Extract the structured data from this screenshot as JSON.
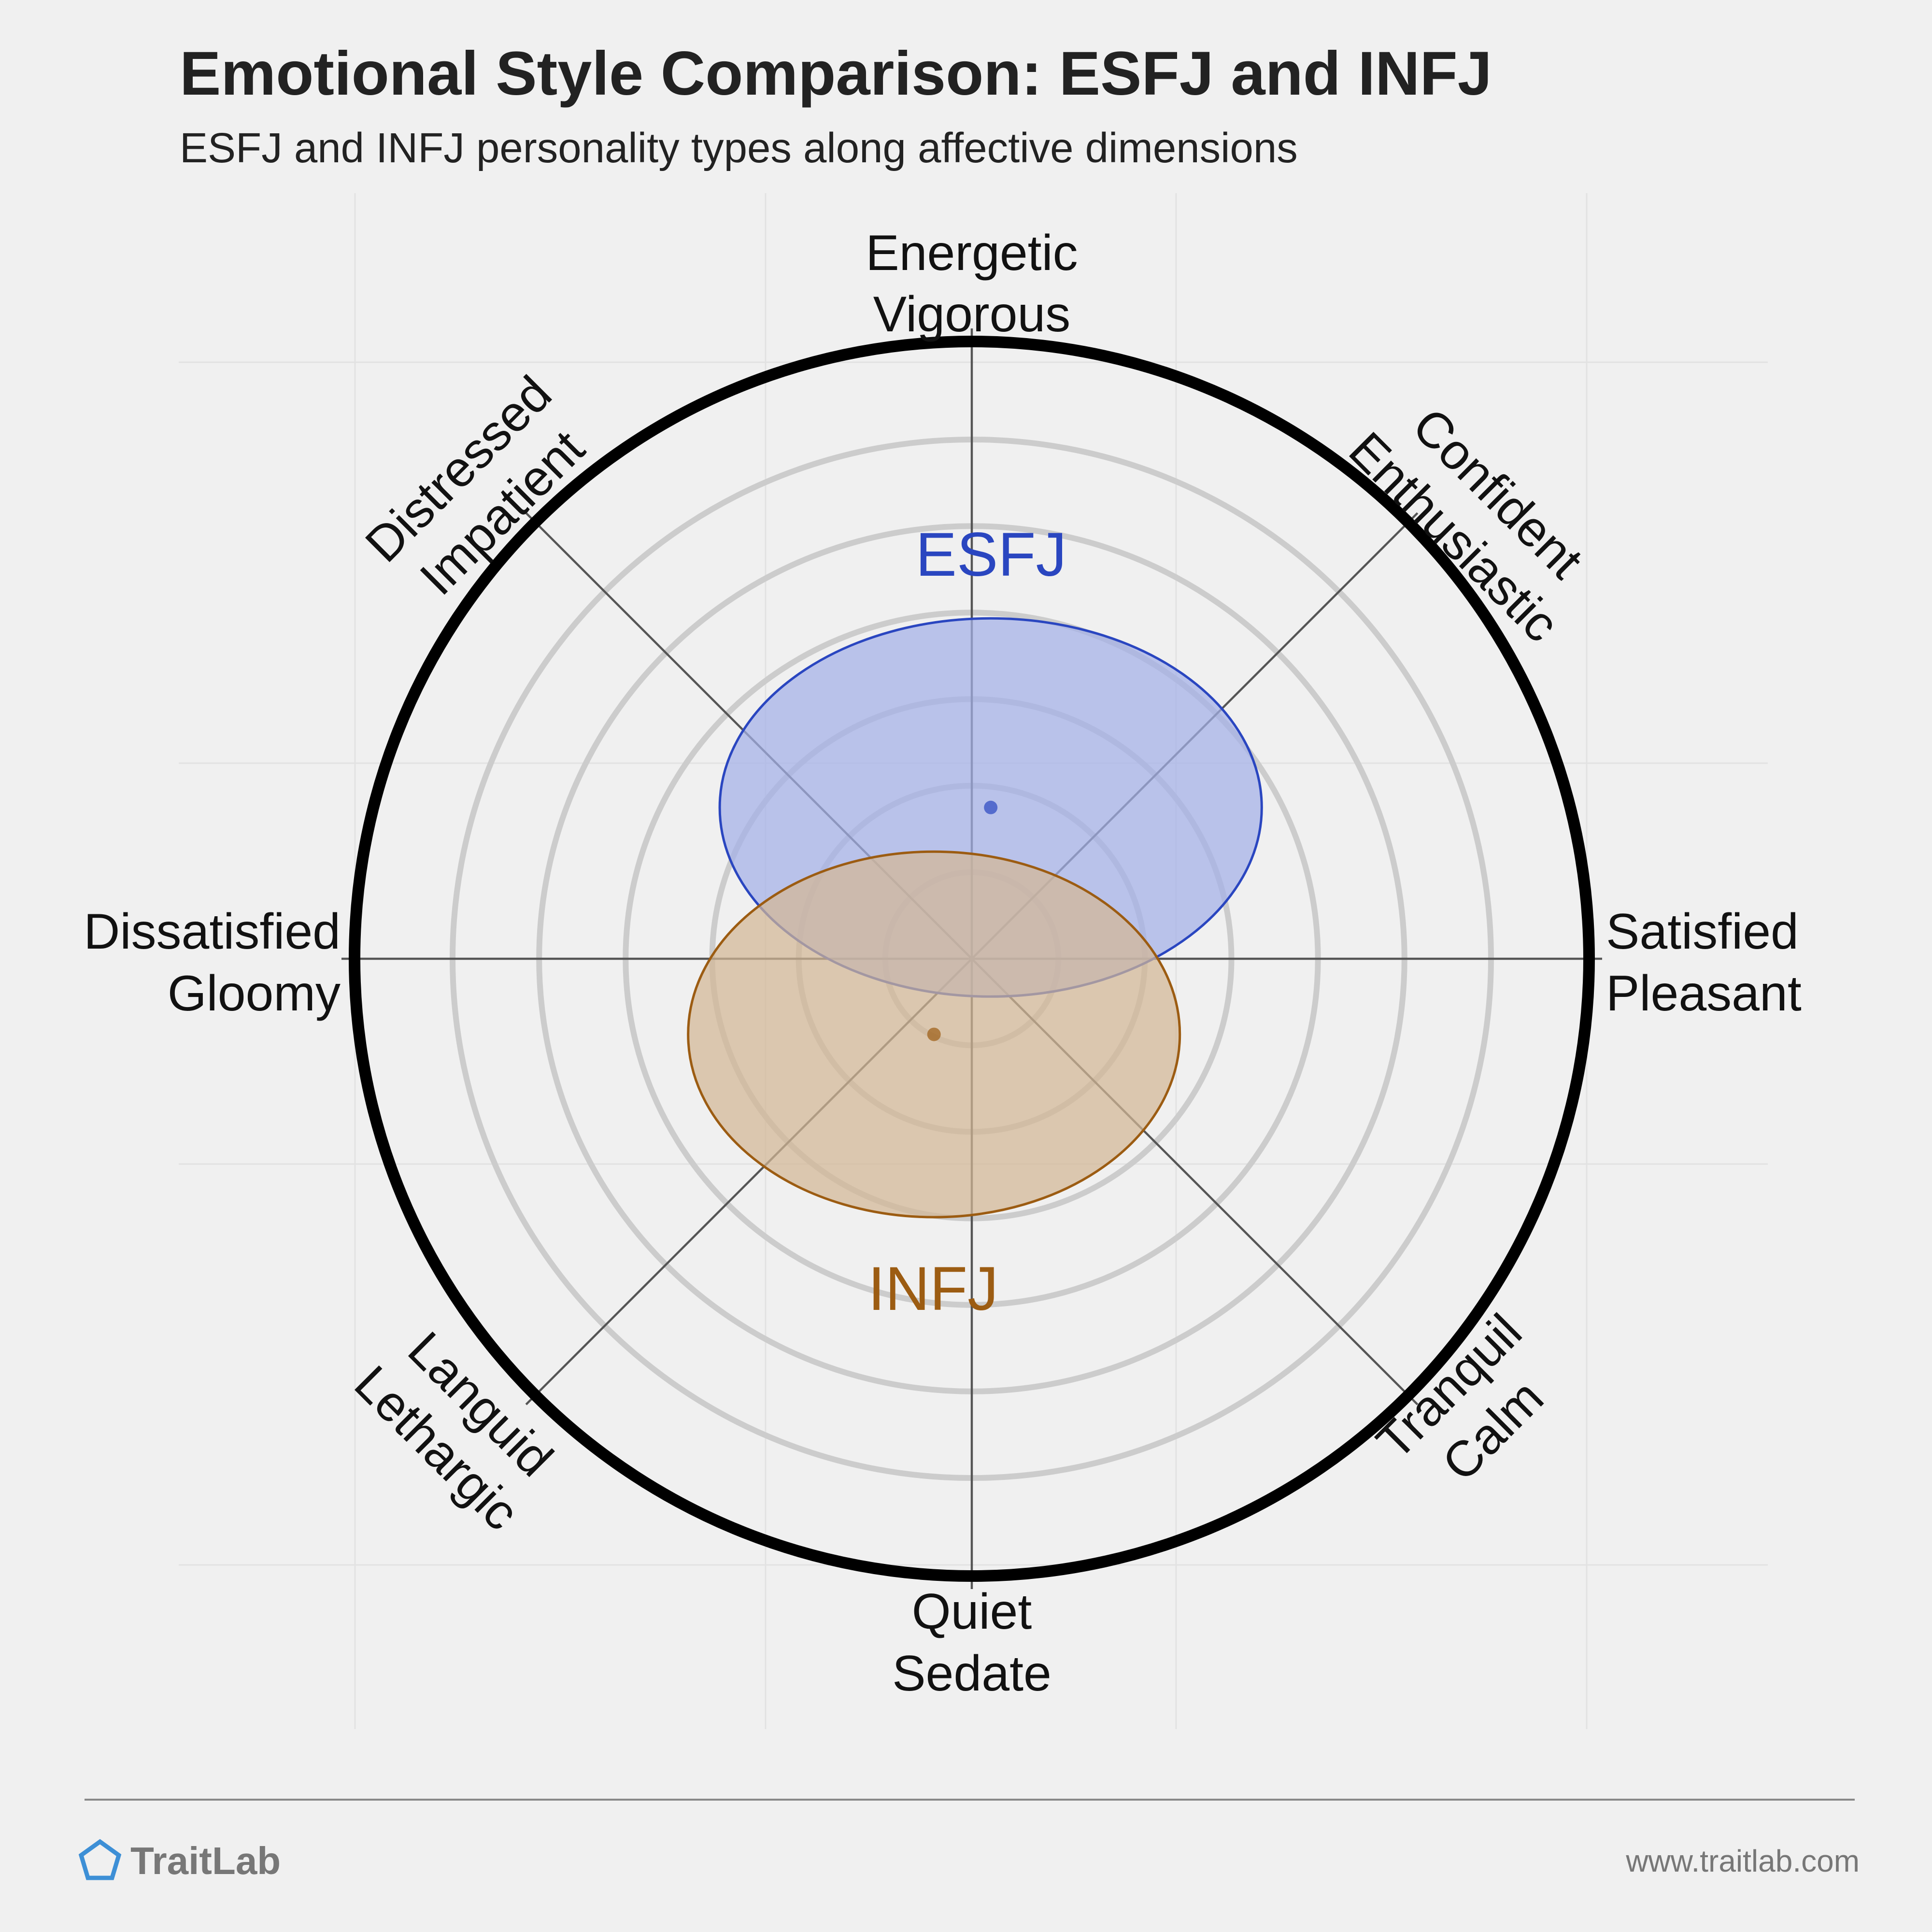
{
  "chart_data": {
    "type": "circumplex",
    "title": "Emotional Style Comparison: ESFJ and INFJ",
    "subtitle": "ESFJ and INFJ personality types along affective dimensions",
    "axes": [
      {
        "label": [
          "Energetic",
          "Vigorous"
        ]
      },
      {
        "label": [
          "Confident",
          "Enthusiastic"
        ]
      },
      {
        "label": [
          "Satisfied",
          "Pleasant"
        ]
      },
      {
        "label": [
          "Tranquil",
          "Calm"
        ]
      },
      {
        "label": [
          "Quiet",
          "Sedate"
        ]
      },
      {
        "label": [
          "Languid",
          "Lethargic"
        ]
      },
      {
        "label": [
          "Dissatisfied",
          "Gloomy"
        ]
      },
      {
        "label": [
          "Distressed",
          "Impatient"
        ]
      }
    ],
    "x_range": [
      -1,
      1
    ],
    "y_range": [
      -1,
      1
    ],
    "ring_count": 6,
    "series": [
      {
        "name": "ESFJ",
        "x": 0.03,
        "y": 0.24,
        "spread_x": 0.43,
        "spread_y": 0.3,
        "color": "#2a46c0",
        "fill": "#a4b0e8"
      },
      {
        "name": "INFJ",
        "x": -0.06,
        "y": -0.12,
        "spread_x": 0.39,
        "spread_y": 0.29,
        "color": "#9c5c12",
        "fill": "#d2b796"
      }
    ]
  },
  "footer": {
    "brand": "TraitLab",
    "url": "www.traitlab.com"
  }
}
